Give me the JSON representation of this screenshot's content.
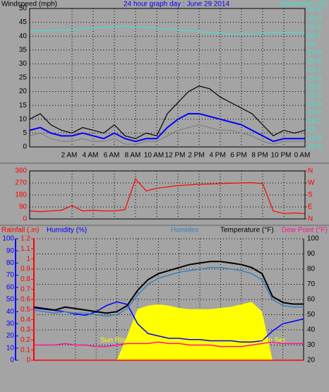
{
  "chart_data": [
    {
      "type": "line",
      "title": "24 hour graph day : June 29 2014",
      "ylabel": "Windspeed (mph)",
      "y2label": "Barometer (.in)",
      "x": [
        -2,
        -1,
        0,
        1,
        2,
        3,
        4,
        5,
        6,
        7,
        8,
        9,
        10,
        11,
        12,
        13,
        14,
        15,
        16,
        17,
        18,
        19,
        20,
        21,
        22,
        23,
        24
      ],
      "xlim": [
        -2,
        24
      ],
      "xticks": [
        {
          "value": 2,
          "label": "2 AM"
        },
        {
          "value": 4,
          "label": "4 AM"
        },
        {
          "value": 6,
          "label": "6 AM"
        },
        {
          "value": 8,
          "label": "8 AM"
        },
        {
          "value": 10,
          "label": "10 AM"
        },
        {
          "value": 12,
          "label": "12 PM"
        },
        {
          "value": 14,
          "label": "2 PM"
        },
        {
          "value": 16,
          "label": "4 PM"
        },
        {
          "value": 18,
          "label": "6 PM"
        },
        {
          "value": 20,
          "label": "8 PM"
        },
        {
          "value": 22,
          "label": "10 PM"
        },
        {
          "value": 24,
          "label": "0 AM"
        }
      ],
      "ylim": [
        0,
        50
      ],
      "yticks": [
        0,
        5,
        10,
        15,
        20,
        25,
        30,
        35,
        40,
        45,
        50
      ],
      "y2lim": [
        28.8,
        30.42
      ],
      "y2ticks": [
        28.8,
        28.9,
        29,
        29.1,
        29.2,
        29.3,
        29.4,
        29.5,
        29.6,
        29.7,
        29.8,
        29.9,
        30,
        30.1,
        30.2,
        30.3,
        30.4
      ],
      "grid": true,
      "series": [
        {
          "color": "#000000",
          "values": [
            10,
            12,
            8,
            6,
            5,
            7,
            6,
            5,
            8,
            4,
            3,
            5,
            4,
            12,
            16,
            20,
            22,
            21,
            18,
            16,
            14,
            12,
            8,
            4,
            6,
            5,
            6
          ]
        },
        {
          "color": "#808080",
          "values": [
            4,
            5,
            3,
            2,
            2,
            3,
            2,
            2,
            3,
            1,
            1,
            2,
            2,
            4,
            6,
            7,
            8,
            7,
            6,
            6,
            5,
            4,
            2,
            1,
            2,
            2,
            2
          ]
        },
        {
          "color": "#0000ff",
          "values": [
            6,
            7,
            5,
            4,
            4,
            5,
            4,
            3,
            5,
            3,
            2,
            3,
            3,
            7,
            10,
            12,
            12,
            11,
            10,
            9,
            8,
            6,
            4,
            2,
            3,
            3,
            3
          ]
        },
        {
          "color": "#40e0d0",
          "axis": "y2",
          "values": [
            30.16,
            30.16,
            30.16,
            30.17,
            30.17,
            30.18,
            30.19,
            30.2,
            30.21,
            30.21,
            30.2,
            30.2,
            30.19,
            30.18,
            30.17,
            30.16,
            30.15,
            30.14,
            30.13,
            30.12,
            30.12,
            30.12,
            30.13,
            30.14,
            30.14,
            30.14,
            30.14
          ]
        }
      ]
    },
    {
      "type": "line",
      "x": [
        -2,
        -1,
        0,
        1,
        2,
        3,
        4,
        5,
        6,
        7,
        8,
        9,
        10,
        11,
        12,
        13,
        14,
        15,
        16,
        17,
        18,
        19,
        20,
        21,
        22,
        23,
        24
      ],
      "xlim": [
        -2,
        24
      ],
      "ylim": [
        0,
        360
      ],
      "yticks": [
        0,
        90,
        180,
        270,
        360
      ],
      "y2ticks": [
        {
          "value": 0,
          "label": "N"
        },
        {
          "value": 90,
          "label": "E"
        },
        {
          "value": 180,
          "label": "S"
        },
        {
          "value": 270,
          "label": "W"
        },
        {
          "value": 360,
          "label": "N"
        }
      ],
      "grid": true,
      "series": [
        {
          "color": "#ff0000",
          "values": [
            60,
            55,
            60,
            65,
            100,
            60,
            65,
            60,
            60,
            70,
            300,
            210,
            230,
            240,
            250,
            255,
            260,
            262,
            265,
            268,
            270,
            272,
            265,
            60,
            40,
            45,
            40
          ]
        }
      ]
    },
    {
      "type": "line",
      "x": [
        -2,
        -1,
        0,
        1,
        2,
        3,
        4,
        5,
        6,
        7,
        8,
        9,
        10,
        11,
        12,
        13,
        14,
        15,
        16,
        17,
        18,
        19,
        20,
        21,
        22,
        23,
        24
      ],
      "xlim": [
        -2,
        24
      ],
      "grid": true,
      "axes": {
        "rain": {
          "lim": [
            0,
            1.2
          ],
          "ticks": [
            0,
            0.1,
            0.2,
            0.3,
            0.4,
            0.5,
            0.6,
            0.7,
            0.8,
            0.9,
            1,
            1.1,
            1.2
          ],
          "color": "#ff0000"
        },
        "humidity": {
          "lim": [
            0,
            100
          ],
          "ticks": [
            0,
            10,
            20,
            30,
            40,
            50,
            60,
            70,
            80,
            90,
            100
          ],
          "color": "#0000ff"
        },
        "temperature": {
          "lim": [
            20,
            100
          ],
          "ticks": [
            20,
            30,
            40,
            50,
            60,
            70,
            80,
            90,
            100
          ],
          "color": "#000000"
        }
      },
      "annotations": [
        "Sun Rise",
        "Sun Set"
      ],
      "series": [
        {
          "axis": "humidity",
          "kind": "area",
          "color": "#ffff00",
          "values": [
            0,
            0,
            0,
            0,
            0,
            0,
            0,
            0,
            0,
            20,
            42,
            45,
            46,
            45,
            43,
            42,
            42,
            42,
            43,
            44,
            46,
            48,
            40,
            0,
            0,
            0,
            0
          ]
        },
        {
          "name": "Rainfall (.in)",
          "axis": "rain",
          "color": "#ff0000",
          "values": [
            0,
            0,
            0,
            0,
            0,
            0,
            0,
            0,
            0,
            0,
            0,
            0,
            0,
            0,
            0,
            0,
            0,
            0,
            0,
            0,
            0,
            0,
            0,
            0,
            0,
            0,
            0
          ]
        },
        {
          "name": "Humidity (%)",
          "axis": "humidity",
          "color": "#0000ff",
          "values": [
            43,
            42,
            41,
            40,
            38,
            37,
            40,
            45,
            48,
            46,
            30,
            22,
            20,
            18,
            18,
            17,
            17,
            16,
            16,
            16,
            15,
            15,
            16,
            24,
            30,
            32,
            34
          ]
        },
        {
          "name": "Humidex",
          "axis": "temperature",
          "color": "#3a80c0",
          "values": [
            53,
            52,
            51,
            52,
            51,
            51,
            50,
            49,
            50,
            54,
            63,
            70,
            74,
            76,
            78,
            79,
            80,
            81,
            81,
            80,
            79,
            77,
            73,
            60,
            56,
            55,
            55
          ]
        },
        {
          "name": "Temperature (°F)",
          "axis": "temperature",
          "color": "#000000",
          "values": [
            55,
            54,
            53,
            55,
            54,
            53,
            52,
            51,
            52,
            56,
            66,
            73,
            77,
            79,
            81,
            83,
            84,
            85,
            85,
            84,
            83,
            81,
            77,
            62,
            58,
            57,
            57
          ]
        },
        {
          "name": "Dew Point (°F)",
          "axis": "temperature",
          "color": "#ff1493",
          "values": [
            30,
            30,
            30,
            31,
            30,
            30,
            29,
            29,
            30,
            31,
            31,
            31,
            32,
            31,
            31,
            30,
            30,
            30,
            29,
            29,
            29,
            30,
            31,
            32,
            31,
            31,
            31
          ]
        }
      ]
    }
  ]
}
